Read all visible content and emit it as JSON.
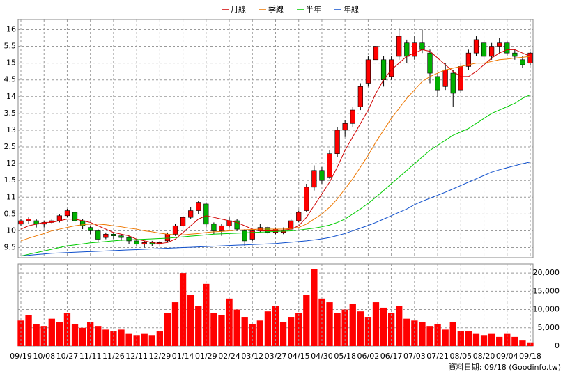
{
  "chart_data": [
    {
      "type": "candlestick",
      "up_color": "#ff0000",
      "down_color": "#00b000",
      "open": [
        10.2,
        10.3,
        10.3,
        10.2,
        10.25,
        10.3,
        10.45,
        10.55,
        10.3,
        10.1,
        10.0,
        9.8,
        9.9,
        9.85,
        9.8,
        9.7,
        9.6,
        9.65,
        9.6,
        9.7,
        9.9,
        10.15,
        10.4,
        10.6,
        10.8,
        10.2,
        10.0,
        10.15,
        10.3,
        10.0,
        9.75,
        10.0,
        10.1,
        9.95,
        9.95,
        10.05,
        10.3,
        10.6,
        11.3,
        11.8,
        11.6,
        12.3,
        13.0,
        13.2,
        13.7,
        14.4,
        15.1,
        15.1,
        14.6,
        15.2,
        15.6,
        15.2,
        15.6,
        15.3,
        14.6,
        14.3,
        14.7,
        14.2,
        14.9,
        15.3,
        15.6,
        15.2,
        15.5,
        15.6,
        15.3,
        15.1,
        15.0
      ],
      "high": [
        10.35,
        10.4,
        10.35,
        10.3,
        10.35,
        10.5,
        10.65,
        10.6,
        10.35,
        10.15,
        10.05,
        9.95,
        9.95,
        9.9,
        9.85,
        9.75,
        9.7,
        9.7,
        9.7,
        9.95,
        10.2,
        10.45,
        10.7,
        10.9,
        10.85,
        10.25,
        10.2,
        10.4,
        10.35,
        10.05,
        10.05,
        10.2,
        10.15,
        10.1,
        10.1,
        10.35,
        10.6,
        11.4,
        11.95,
        11.9,
        12.4,
        13.1,
        13.3,
        13.7,
        14.4,
        15.2,
        15.6,
        15.2,
        15.2,
        16.05,
        15.7,
        15.8,
        16.0,
        15.4,
        14.7,
        15.0,
        14.8,
        15.0,
        15.4,
        15.8,
        15.7,
        15.6,
        15.75,
        15.65,
        15.4,
        15.2,
        15.35
      ],
      "low": [
        10.15,
        10.2,
        10.1,
        10.1,
        10.2,
        10.25,
        10.4,
        10.2,
        10.05,
        9.9,
        9.65,
        9.75,
        9.75,
        9.7,
        9.6,
        9.55,
        9.5,
        9.55,
        9.55,
        9.65,
        9.85,
        10.1,
        10.35,
        10.5,
        10.1,
        9.9,
        9.85,
        10.1,
        10.0,
        9.55,
        9.7,
        9.95,
        9.9,
        9.9,
        9.9,
        10.0,
        10.25,
        10.55,
        11.2,
        11.4,
        11.55,
        12.2,
        12.8,
        13.1,
        13.6,
        14.3,
        15.0,
        14.3,
        14.5,
        15.1,
        15.0,
        15.1,
        15.3,
        14.4,
        14.0,
        14.2,
        13.7,
        14.1,
        14.8,
        15.2,
        15.1,
        15.1,
        15.3,
        15.2,
        15.1,
        14.85,
        14.95
      ],
      "close": [
        10.3,
        10.35,
        10.2,
        10.25,
        10.3,
        10.45,
        10.6,
        10.3,
        10.15,
        10.0,
        9.75,
        9.9,
        9.85,
        9.8,
        9.7,
        9.6,
        9.65,
        9.6,
        9.65,
        9.9,
        10.15,
        10.4,
        10.6,
        10.85,
        10.2,
        10.0,
        10.15,
        10.3,
        10.05,
        9.7,
        10.0,
        10.1,
        9.95,
        10.05,
        10.0,
        10.3,
        10.55,
        11.3,
        11.8,
        11.5,
        12.3,
        13.0,
        13.2,
        13.6,
        14.3,
        15.1,
        15.5,
        14.5,
        15.1,
        15.8,
        15.2,
        15.6,
        15.4,
        14.7,
        14.2,
        14.8,
        14.1,
        14.9,
        15.3,
        15.7,
        15.2,
        15.5,
        15.6,
        15.3,
        15.2,
        14.95,
        15.3
      ],
      "series": [
        {
          "name": "月線",
          "color": "#d00000",
          "values": [
            10.05,
            10.15,
            10.2,
            10.25,
            10.25,
            10.3,
            10.35,
            10.35,
            10.3,
            10.25,
            10.15,
            10.05,
            9.95,
            9.9,
            9.85,
            9.75,
            9.7,
            9.65,
            9.62,
            9.65,
            9.75,
            9.95,
            10.15,
            10.35,
            10.45,
            10.4,
            10.35,
            10.3,
            10.25,
            10.15,
            10.05,
            10.0,
            10.0,
            10.0,
            10.02,
            10.05,
            10.15,
            10.4,
            10.75,
            11.1,
            11.45,
            11.9,
            12.4,
            12.8,
            13.2,
            13.6,
            14.1,
            14.5,
            14.8,
            15.0,
            15.2,
            15.3,
            15.4,
            15.35,
            15.15,
            14.95,
            14.75,
            14.6,
            14.6,
            14.75,
            14.95,
            15.15,
            15.3,
            15.4,
            15.4,
            15.3,
            15.2
          ]
        },
        {
          "name": "季線",
          "color": "#ee7700",
          "values": [
            9.7,
            9.78,
            9.85,
            9.92,
            10.0,
            10.05,
            10.1,
            10.15,
            10.18,
            10.2,
            10.2,
            10.18,
            10.15,
            10.12,
            10.08,
            10.05,
            10.0,
            9.97,
            9.93,
            9.9,
            9.88,
            9.88,
            9.9,
            9.92,
            9.95,
            9.97,
            9.98,
            10.0,
            10.02,
            10.03,
            10.04,
            10.05,
            10.05,
            10.05,
            10.05,
            10.07,
            10.1,
            10.2,
            10.35,
            10.5,
            10.7,
            10.95,
            11.25,
            11.55,
            11.9,
            12.25,
            12.65,
            13.0,
            13.35,
            13.65,
            13.95,
            14.2,
            14.45,
            14.6,
            14.7,
            14.8,
            14.85,
            14.9,
            14.95,
            15.0,
            15.0,
            15.05,
            15.1,
            15.12,
            15.15,
            15.17,
            15.2
          ]
        },
        {
          "name": "半年",
          "color": "#00cc00",
          "values": [
            9.25,
            9.3,
            9.35,
            9.4,
            9.45,
            9.5,
            9.55,
            9.58,
            9.61,
            9.64,
            9.66,
            9.68,
            9.7,
            9.72,
            9.73,
            9.74,
            9.75,
            9.76,
            9.77,
            9.78,
            9.8,
            9.82,
            9.84,
            9.86,
            9.88,
            9.9,
            9.91,
            9.92,
            9.93,
            9.94,
            9.95,
            9.96,
            9.97,
            9.98,
            9.99,
            10.0,
            10.02,
            10.05,
            10.08,
            10.12,
            10.17,
            10.25,
            10.35,
            10.5,
            10.65,
            10.82,
            11.0,
            11.2,
            11.4,
            11.6,
            11.8,
            12.0,
            12.2,
            12.4,
            12.55,
            12.7,
            12.85,
            12.95,
            13.05,
            13.2,
            13.35,
            13.5,
            13.6,
            13.7,
            13.8,
            13.95,
            14.05
          ]
        },
        {
          "name": "年線",
          "color": "#1050cc",
          "values": [
            9.25,
            9.27,
            9.29,
            9.31,
            9.33,
            9.34,
            9.35,
            9.36,
            9.37,
            9.38,
            9.39,
            9.4,
            9.41,
            9.42,
            9.43,
            9.44,
            9.45,
            9.46,
            9.47,
            9.48,
            9.49,
            9.5,
            9.51,
            9.52,
            9.53,
            9.54,
            9.55,
            9.56,
            9.57,
            9.58,
            9.59,
            9.6,
            9.61,
            9.62,
            9.64,
            9.66,
            9.68,
            9.7,
            9.73,
            9.76,
            9.8,
            9.86,
            9.92,
            10.0,
            10.08,
            10.16,
            10.25,
            10.35,
            10.45,
            10.55,
            10.65,
            10.78,
            10.88,
            10.97,
            11.06,
            11.15,
            11.25,
            11.35,
            11.45,
            11.55,
            11.65,
            11.75,
            11.82,
            11.88,
            11.94,
            12.0,
            12.05
          ]
        }
      ],
      "ylim": [
        9.2,
        16.3
      ],
      "yticks": [
        {
          "value": 9.5,
          "label": "9.5"
        },
        10,
        {
          "value": 10.5,
          "label": "0.5"
        },
        11,
        {
          "value": 11.5,
          "label": "1.5"
        },
        12,
        {
          "value": 12.5,
          "label": "2.5"
        },
        13,
        {
          "value": 13.5,
          "label": "3.5"
        },
        14,
        {
          "value": 14.5,
          "label": "4.5"
        },
        15,
        {
          "value": 15.5,
          "label": "5.5"
        },
        16
      ],
      "grid": true
    },
    {
      "type": "bar",
      "color": "#ff0000",
      "categories": [
        "09/19",
        null,
        null,
        "10/08",
        null,
        null,
        "10/27",
        null,
        null,
        "11/11",
        null,
        null,
        "11/26",
        null,
        null,
        "12/11",
        null,
        null,
        "12/29",
        null,
        null,
        "01/14",
        null,
        null,
        "01/29",
        null,
        null,
        "02/24",
        null,
        null,
        "03/12",
        null,
        null,
        "03/27",
        null,
        null,
        "04/15",
        null,
        null,
        "04/30",
        null,
        null,
        "05/18",
        null,
        null,
        "06/02",
        null,
        null,
        "06/17",
        null,
        null,
        "07/03",
        null,
        null,
        "07/21",
        null,
        null,
        "08/05",
        null,
        null,
        "08/20",
        null,
        null,
        "09/04",
        null,
        null,
        "09/18"
      ],
      "values": [
        7000,
        8500,
        6000,
        5500,
        7500,
        6500,
        9000,
        6000,
        5000,
        6500,
        5500,
        4500,
        4000,
        4500,
        3500,
        3000,
        3500,
        3000,
        4000,
        9000,
        12000,
        20000,
        14000,
        11000,
        17000,
        9000,
        8500,
        13000,
        10000,
        8000,
        6000,
        7000,
        9500,
        11000,
        6500,
        8000,
        9000,
        14000,
        21000,
        13000,
        12000,
        9000,
        10000,
        11500,
        9500,
        8000,
        12000,
        10500,
        9000,
        11000,
        7500,
        7000,
        6500,
        5500,
        6000,
        4500,
        6500,
        4000,
        4000,
        3500,
        3000,
        3500,
        2500,
        3500,
        2500,
        1500,
        1000
      ],
      "ylim": [
        0,
        22500
      ],
      "yticks": [
        0,
        {
          "value": 5000,
          "label": "5,000"
        },
        {
          "value": 10000,
          "label": "10,000"
        },
        {
          "value": 15000,
          "label": "15,000"
        },
        {
          "value": 20000,
          "label": "20,000"
        }
      ],
      "grid": true,
      "footer": "資料日期: 09/18  (Goodinfo.tw)"
    }
  ]
}
